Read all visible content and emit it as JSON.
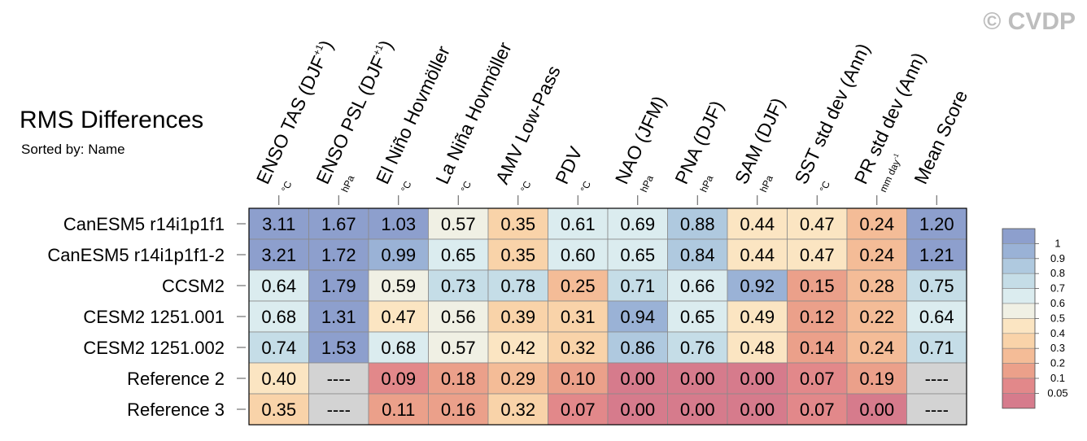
{
  "watermark": "© CVDP",
  "title": "RMS Differences",
  "subtitle": "Sorted by: Name",
  "chart_data": {
    "type": "heatmap",
    "title": "RMS Differences",
    "subtitle": "Sorted by: Name",
    "columns": [
      {
        "name": "ENSO TAS (DJF",
        "sup": "+1",
        "close": ")",
        "unit": "°C"
      },
      {
        "name": "ENSO PSL (DJF",
        "sup": "+1",
        "close": ")",
        "unit": "hPa"
      },
      {
        "name": "El Niño Hovmöller",
        "unit": "°C"
      },
      {
        "name": "La Niña Hovmöller",
        "unit": "°C"
      },
      {
        "name": "AMV Low-Pass",
        "unit": "°C"
      },
      {
        "name": "PDV",
        "unit": "°C"
      },
      {
        "name": "NAO (JFM)",
        "unit": "hPa"
      },
      {
        "name": "PNA (DJF)",
        "unit": "hPa"
      },
      {
        "name": "SAM (DJF)",
        "unit": "hPa"
      },
      {
        "name": "SST std dev (Ann)",
        "unit": "°C"
      },
      {
        "name": "PR std dev (Ann)",
        "unit": "mm day",
        "unit_sup": "-1"
      },
      {
        "name": "Mean Score",
        "unit": ""
      }
    ],
    "rows": [
      "CanESM5 r14i1p1f1",
      "CanESM5 r14i1p1f1-2",
      "CCSM2",
      "CESM2 1251.001",
      "CESM2 1251.002",
      "Reference 2",
      "Reference 3"
    ],
    "cells": [
      [
        "3.11",
        "1.67",
        "1.03",
        "0.57",
        "0.35",
        "0.61",
        "0.69",
        "0.88",
        "0.44",
        "0.47",
        "0.24",
        "1.20"
      ],
      [
        "3.21",
        "1.72",
        "0.99",
        "0.65",
        "0.35",
        "0.60",
        "0.65",
        "0.84",
        "0.44",
        "0.47",
        "0.24",
        "1.21"
      ],
      [
        "0.64",
        "1.79",
        "0.59",
        "0.73",
        "0.78",
        "0.25",
        "0.71",
        "0.66",
        "0.92",
        "0.15",
        "0.28",
        "0.75"
      ],
      [
        "0.68",
        "1.31",
        "0.47",
        "0.56",
        "0.39",
        "0.31",
        "0.94",
        "0.65",
        "0.49",
        "0.12",
        "0.22",
        "0.64"
      ],
      [
        "0.74",
        "1.53",
        "0.68",
        "0.57",
        "0.42",
        "0.32",
        "0.86",
        "0.76",
        "0.48",
        "0.14",
        "0.24",
        "0.71"
      ],
      [
        "0.40",
        "----",
        "0.09",
        "0.18",
        "0.29",
        "0.10",
        "0.00",
        "0.00",
        "0.00",
        "0.07",
        "0.19",
        "----"
      ],
      [
        "0.35",
        "----",
        "0.11",
        "0.16",
        "0.32",
        "0.07",
        "0.00",
        "0.00",
        "0.00",
        "0.07",
        "0.00",
        "----"
      ]
    ],
    "missing_color": "#d3d3d3",
    "colorbar": {
      "labels": [
        "1",
        "0.9",
        "0.8",
        "0.7",
        "0.6",
        "0.5",
        "0.4",
        "0.3",
        "0.2",
        "0.1",
        "0.05"
      ],
      "bins": [
        {
          "min": 1.0,
          "color": "#8d9fcd"
        },
        {
          "min": 0.9,
          "color": "#9ab2d6"
        },
        {
          "min": 0.8,
          "color": "#afc9df"
        },
        {
          "min": 0.7,
          "color": "#c5dde7"
        },
        {
          "min": 0.6,
          "color": "#dbecef"
        },
        {
          "min": 0.5,
          "color": "#f0f0e4"
        },
        {
          "min": 0.4,
          "color": "#fbe5c2"
        },
        {
          "min": 0.3,
          "color": "#f9d3a9"
        },
        {
          "min": 0.2,
          "color": "#f4bc97"
        },
        {
          "min": 0.1,
          "color": "#eba08a"
        },
        {
          "min": 0.05,
          "color": "#e2888a"
        },
        {
          "min": -1,
          "color": "#d67b8c"
        }
      ]
    }
  }
}
